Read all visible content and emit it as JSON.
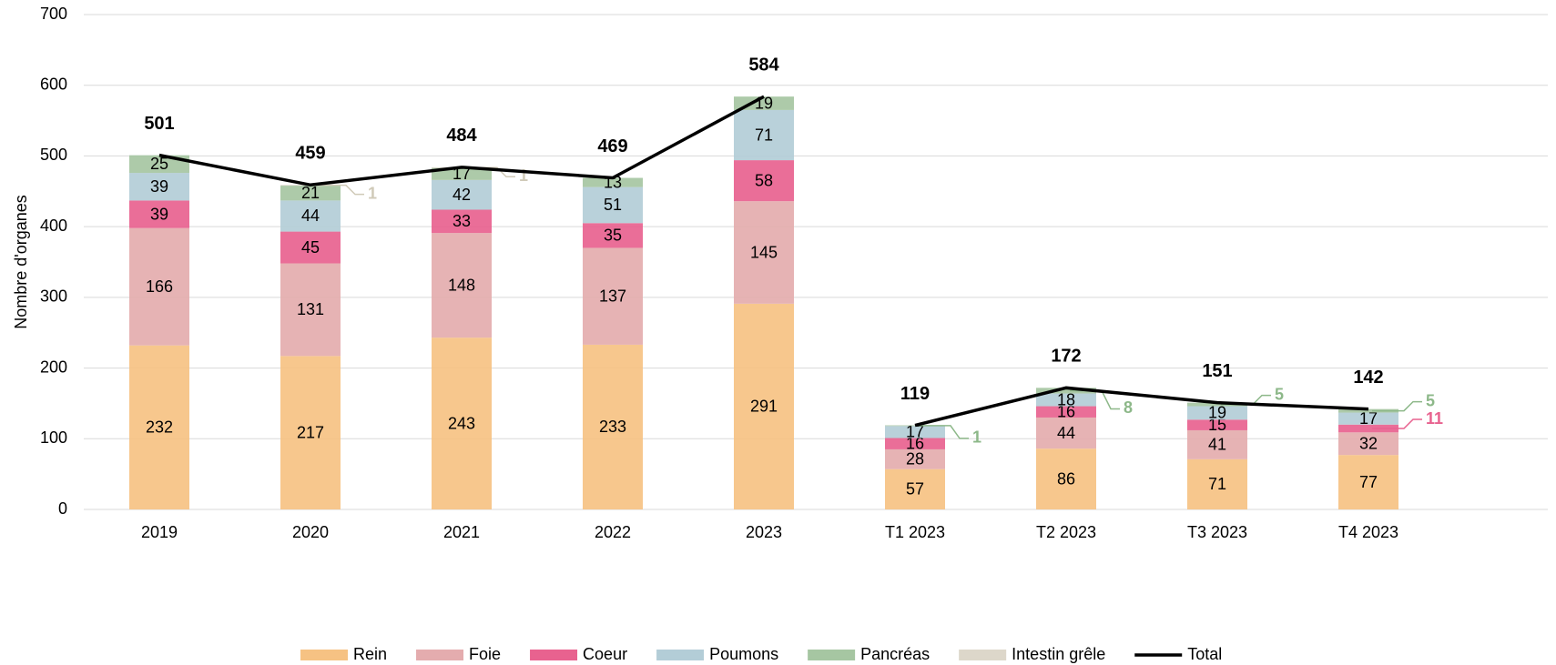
{
  "chart_data": {
    "type": "stacked-bar-line",
    "y_label": "Nombre d'organes",
    "categories": [
      "2019",
      "2020",
      "2021",
      "2022",
      "2023",
      "T1 2023",
      "T2 2023",
      "T3 2023",
      "T4 2023"
    ],
    "ylim": [
      0,
      700
    ],
    "yticks": [
      0,
      100,
      200,
      300,
      400,
      500,
      600,
      700
    ],
    "grid": true,
    "legend": "bottom",
    "series": [
      {
        "name": "Rein",
        "color": "#f6c283",
        "values": [
          232,
          217,
          243,
          233,
          291,
          57,
          86,
          71,
          77
        ]
      },
      {
        "name": "Foie",
        "color": "#e4acae",
        "values": [
          166,
          131,
          148,
          137,
          145,
          28,
          44,
          41,
          32
        ]
      },
      {
        "name": "Coeur",
        "color": "#e8628f",
        "values": [
          39,
          45,
          33,
          35,
          58,
          16,
          16,
          15,
          11
        ]
      },
      {
        "name": "Poumons",
        "color": "#b3cdd7",
        "values": [
          39,
          44,
          42,
          51,
          71,
          17,
          18,
          19,
          17
        ]
      },
      {
        "name": "Pancréas",
        "color": "#a6c6a2",
        "label_color": "#8db889",
        "values": [
          25,
          21,
          17,
          13,
          19,
          1,
          8,
          5,
          5
        ]
      },
      {
        "name": "Intestin grêle",
        "color": "#ddd7ca",
        "label_color": "#d0cab8",
        "values": [
          null,
          1,
          1,
          null,
          null,
          null,
          null,
          null,
          null
        ]
      },
      {
        "name": "Total",
        "type": "line",
        "color": "#000000",
        "values": [
          501,
          459,
          484,
          469,
          584,
          119,
          172,
          151,
          142
        ]
      }
    ]
  }
}
